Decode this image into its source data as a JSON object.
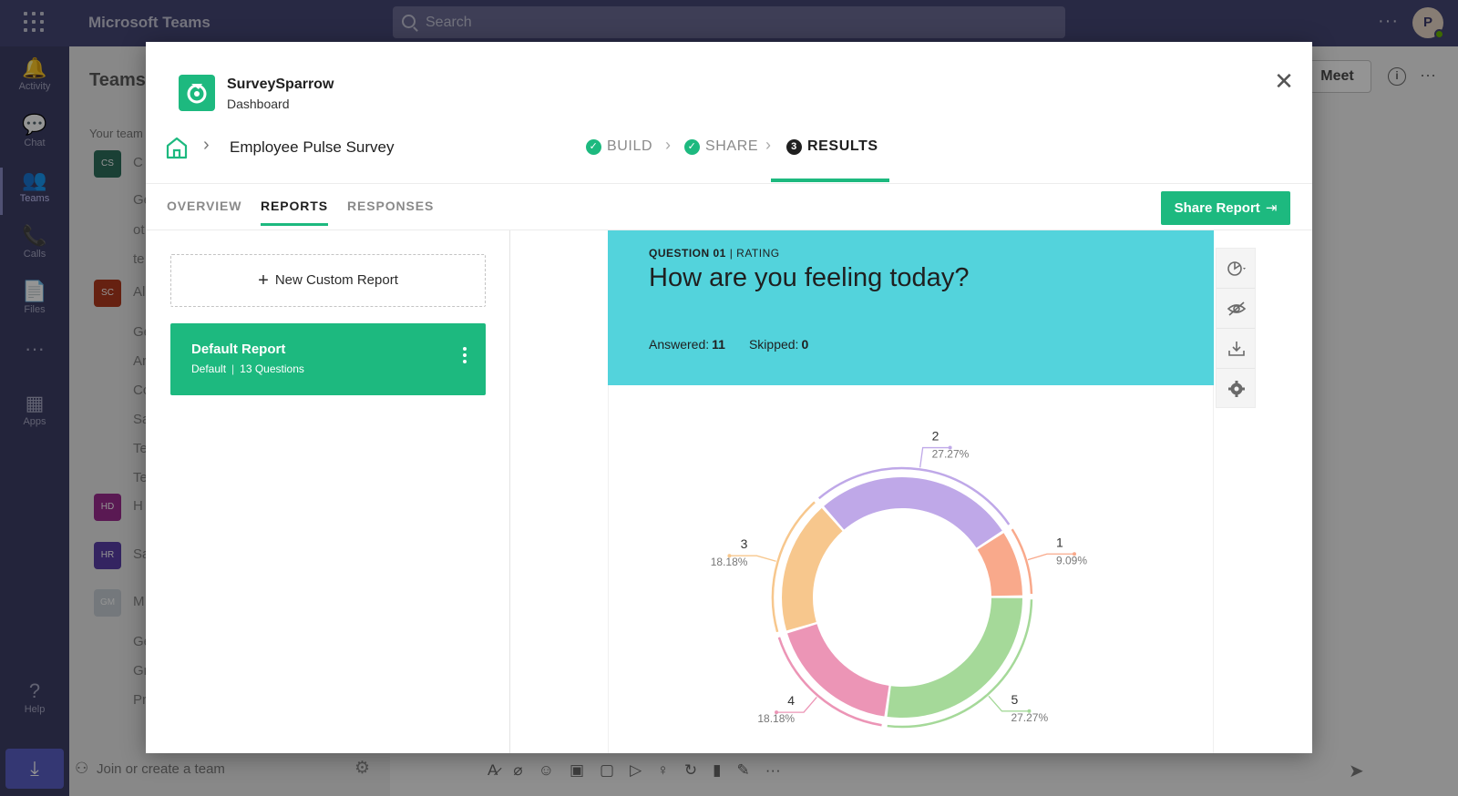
{
  "teams": {
    "app_title": "Microsoft Teams",
    "search_placeholder": "Search",
    "avatar_initial": "P",
    "rail": [
      {
        "label": "Activity",
        "icon": "bell-icon",
        "glyph": "🔔"
      },
      {
        "label": "Chat",
        "icon": "chat-icon",
        "glyph": "💬"
      },
      {
        "label": "Teams",
        "icon": "teams-icon",
        "glyph": "👥"
      },
      {
        "label": "Calls",
        "icon": "phone-icon",
        "glyph": "📞"
      },
      {
        "label": "Files",
        "icon": "file-icon",
        "glyph": "📄"
      },
      {
        "label": "",
        "icon": "more-icon",
        "glyph": "···"
      },
      {
        "label": "Apps",
        "icon": "apps-icon",
        "glyph": "▦"
      },
      {
        "label": "Help",
        "icon": "help-icon",
        "glyph": "?"
      }
    ],
    "panel_heading": "Teams",
    "your_teams_label": "Your team",
    "team_badges": [
      {
        "initials": "CS",
        "color": "#2e6e5c",
        "frag": "C"
      },
      {
        "initials": "SC",
        "color": "#b03a1e",
        "frag": "Al"
      },
      {
        "initials": "HD",
        "color": "#9b2c8f",
        "frag": "H"
      },
      {
        "initials": "HR",
        "color": "#5b3fa8",
        "frag": "Sa"
      },
      {
        "initials": "GM",
        "color": "#c8cfd6",
        "frag": "M"
      }
    ],
    "channel_frags": [
      "Ge",
      "ot",
      "te",
      "Ge",
      "Ar",
      "Cc",
      "Sa",
      "Te",
      "Te",
      "Ge",
      "Gr",
      "Pr"
    ],
    "join_label": "Join or create a team",
    "meet_label": "Meet"
  },
  "modal": {
    "brand_name": "SurveySparrow",
    "brand_sub": "Dashboard",
    "survey_name": "Employee Pulse Survey",
    "steps": [
      {
        "label": "BUILD",
        "state": "done"
      },
      {
        "label": "SHARE",
        "state": "done"
      },
      {
        "label": "RESULTS",
        "state": "current",
        "number": "3"
      }
    ],
    "subtabs": [
      "OVERVIEW",
      "REPORTS",
      "RESPONSES"
    ],
    "active_subtab": "REPORTS",
    "share_button": "Share Report",
    "new_report_label": "New Custom Report",
    "report": {
      "title": "Default Report",
      "type": "Default",
      "questions": "13 Questions"
    },
    "question": {
      "number_label": "QUESTION 01",
      "type_label": "RATING",
      "text": "How are you feeling today?",
      "answered_label": "Answered:",
      "answered": "11",
      "skipped_label": "Skipped:",
      "skipped": "0"
    },
    "tools": [
      "chart-type-icon",
      "hide-icon",
      "download-icon",
      "settings-icon"
    ]
  },
  "chart_data": {
    "type": "pie",
    "donut": true,
    "categories": [
      "1",
      "2",
      "3",
      "4",
      "5"
    ],
    "values": [
      9.09,
      27.27,
      18.18,
      18.18,
      27.27
    ],
    "labels": [
      "9.09%",
      "27.27%",
      "18.18%",
      "18.18%",
      "27.27%"
    ],
    "colors": [
      "#f9a98b",
      "#bfa8e8",
      "#f7c78d",
      "#ec95b6",
      "#a5d999"
    ]
  }
}
